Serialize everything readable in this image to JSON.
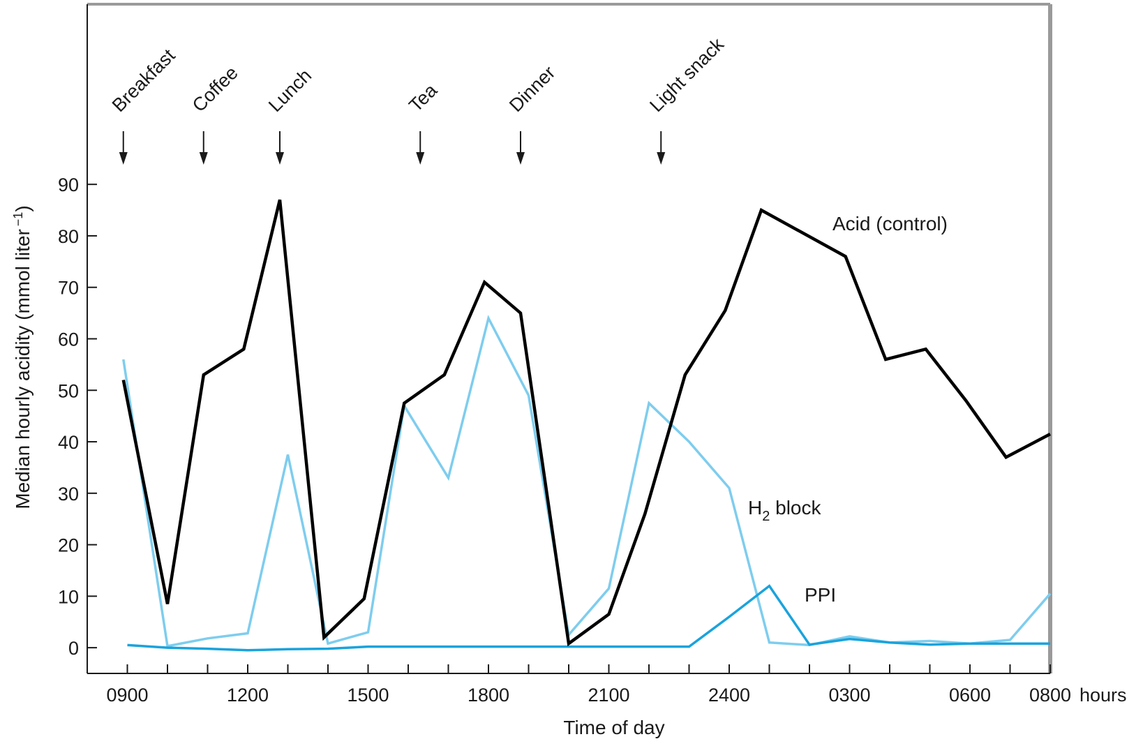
{
  "chart_data": {
    "type": "line",
    "title": "",
    "xlabel": "Time of day",
    "ylabel": "Median hourly acidity (mmol liter",
    "ylabel_sup": "−1",
    "ylabel_close": ")",
    "x_unit": "hours",
    "x_tick_labels": [
      "0900",
      "1200",
      "1500",
      "1800",
      "2100",
      "2400",
      "0300",
      "0600",
      "0800"
    ],
    "x_tick_positions_hours": [
      0,
      3,
      6,
      9,
      12,
      15,
      18,
      21,
      23
    ],
    "xlim_hours": [
      -1,
      23
    ],
    "y_ticks": [
      0,
      10,
      20,
      30,
      40,
      50,
      60,
      70,
      80,
      90
    ],
    "ylim": [
      -5,
      125
    ],
    "grid": false,
    "meals": [
      {
        "label": "Breakfast",
        "x": -0.1
      },
      {
        "label": "Coffee",
        "x": 1.9
      },
      {
        "label": "Lunch",
        "x": 3.8
      },
      {
        "label": "Tea",
        "x": 7.3
      },
      {
        "label": "Dinner",
        "x": 9.8
      },
      {
        "label": "Light snack",
        "x": 13.3
      }
    ],
    "series": [
      {
        "name": "Acid (control)",
        "label_main": "Acid (control)",
        "color": "#000000",
        "x": [
          -0.1,
          1.0,
          1.9,
          2.9,
          3.8,
          4.9,
          5.9,
          6.9,
          7.9,
          8.9,
          9.8,
          11.0,
          12.0,
          12.9,
          13.9,
          14.9,
          15.8,
          17.9,
          18.9,
          19.9,
          20.9,
          21.9,
          23.0
        ],
        "values": [
          52,
          8.5,
          53,
          58,
          87,
          2,
          9.5,
          47.5,
          53,
          71,
          65,
          0.8,
          6.5,
          26,
          53,
          65.5,
          85,
          76,
          56,
          58,
          48,
          37,
          41.5
        ]
      },
      {
        "name": "H2 block",
        "label_main": "H",
        "label_sub": "2",
        "label_rest": " block",
        "color": "#7ecdee",
        "x": [
          -0.1,
          1.0,
          2.0,
          3.0,
          4.0,
          5.0,
          6.0,
          6.9,
          8.0,
          9.0,
          10.0,
          11.0,
          12.0,
          13.0,
          14.0,
          15.0,
          16.0,
          17.0,
          18.0,
          19.0,
          20.0,
          21.0,
          22.0,
          23.0
        ],
        "values": [
          56,
          0.3,
          1.8,
          2.8,
          37.5,
          0.8,
          3,
          47,
          33,
          64,
          49,
          2.5,
          11.5,
          47.5,
          40,
          31,
          1,
          0.5,
          2.2,
          1,
          1.3,
          0.8,
          1.5,
          10.5
        ]
      },
      {
        "name": "PPI",
        "label_main": "PPI",
        "color": "#1aa3dc",
        "x": [
          0,
          1,
          2,
          3,
          4,
          5,
          6,
          7,
          8,
          9,
          10,
          11,
          12,
          13,
          14,
          15,
          16,
          17,
          18,
          19,
          20,
          21,
          22,
          23
        ],
        "values": [
          0.5,
          0,
          -0.2,
          -0.5,
          -0.3,
          -0.2,
          0.2,
          0.2,
          0.2,
          0.2,
          0.2,
          0.2,
          0.2,
          0.2,
          0.2,
          6,
          12,
          0.6,
          1.7,
          1,
          0.6,
          0.8,
          0.8,
          0.8
        ]
      }
    ]
  }
}
